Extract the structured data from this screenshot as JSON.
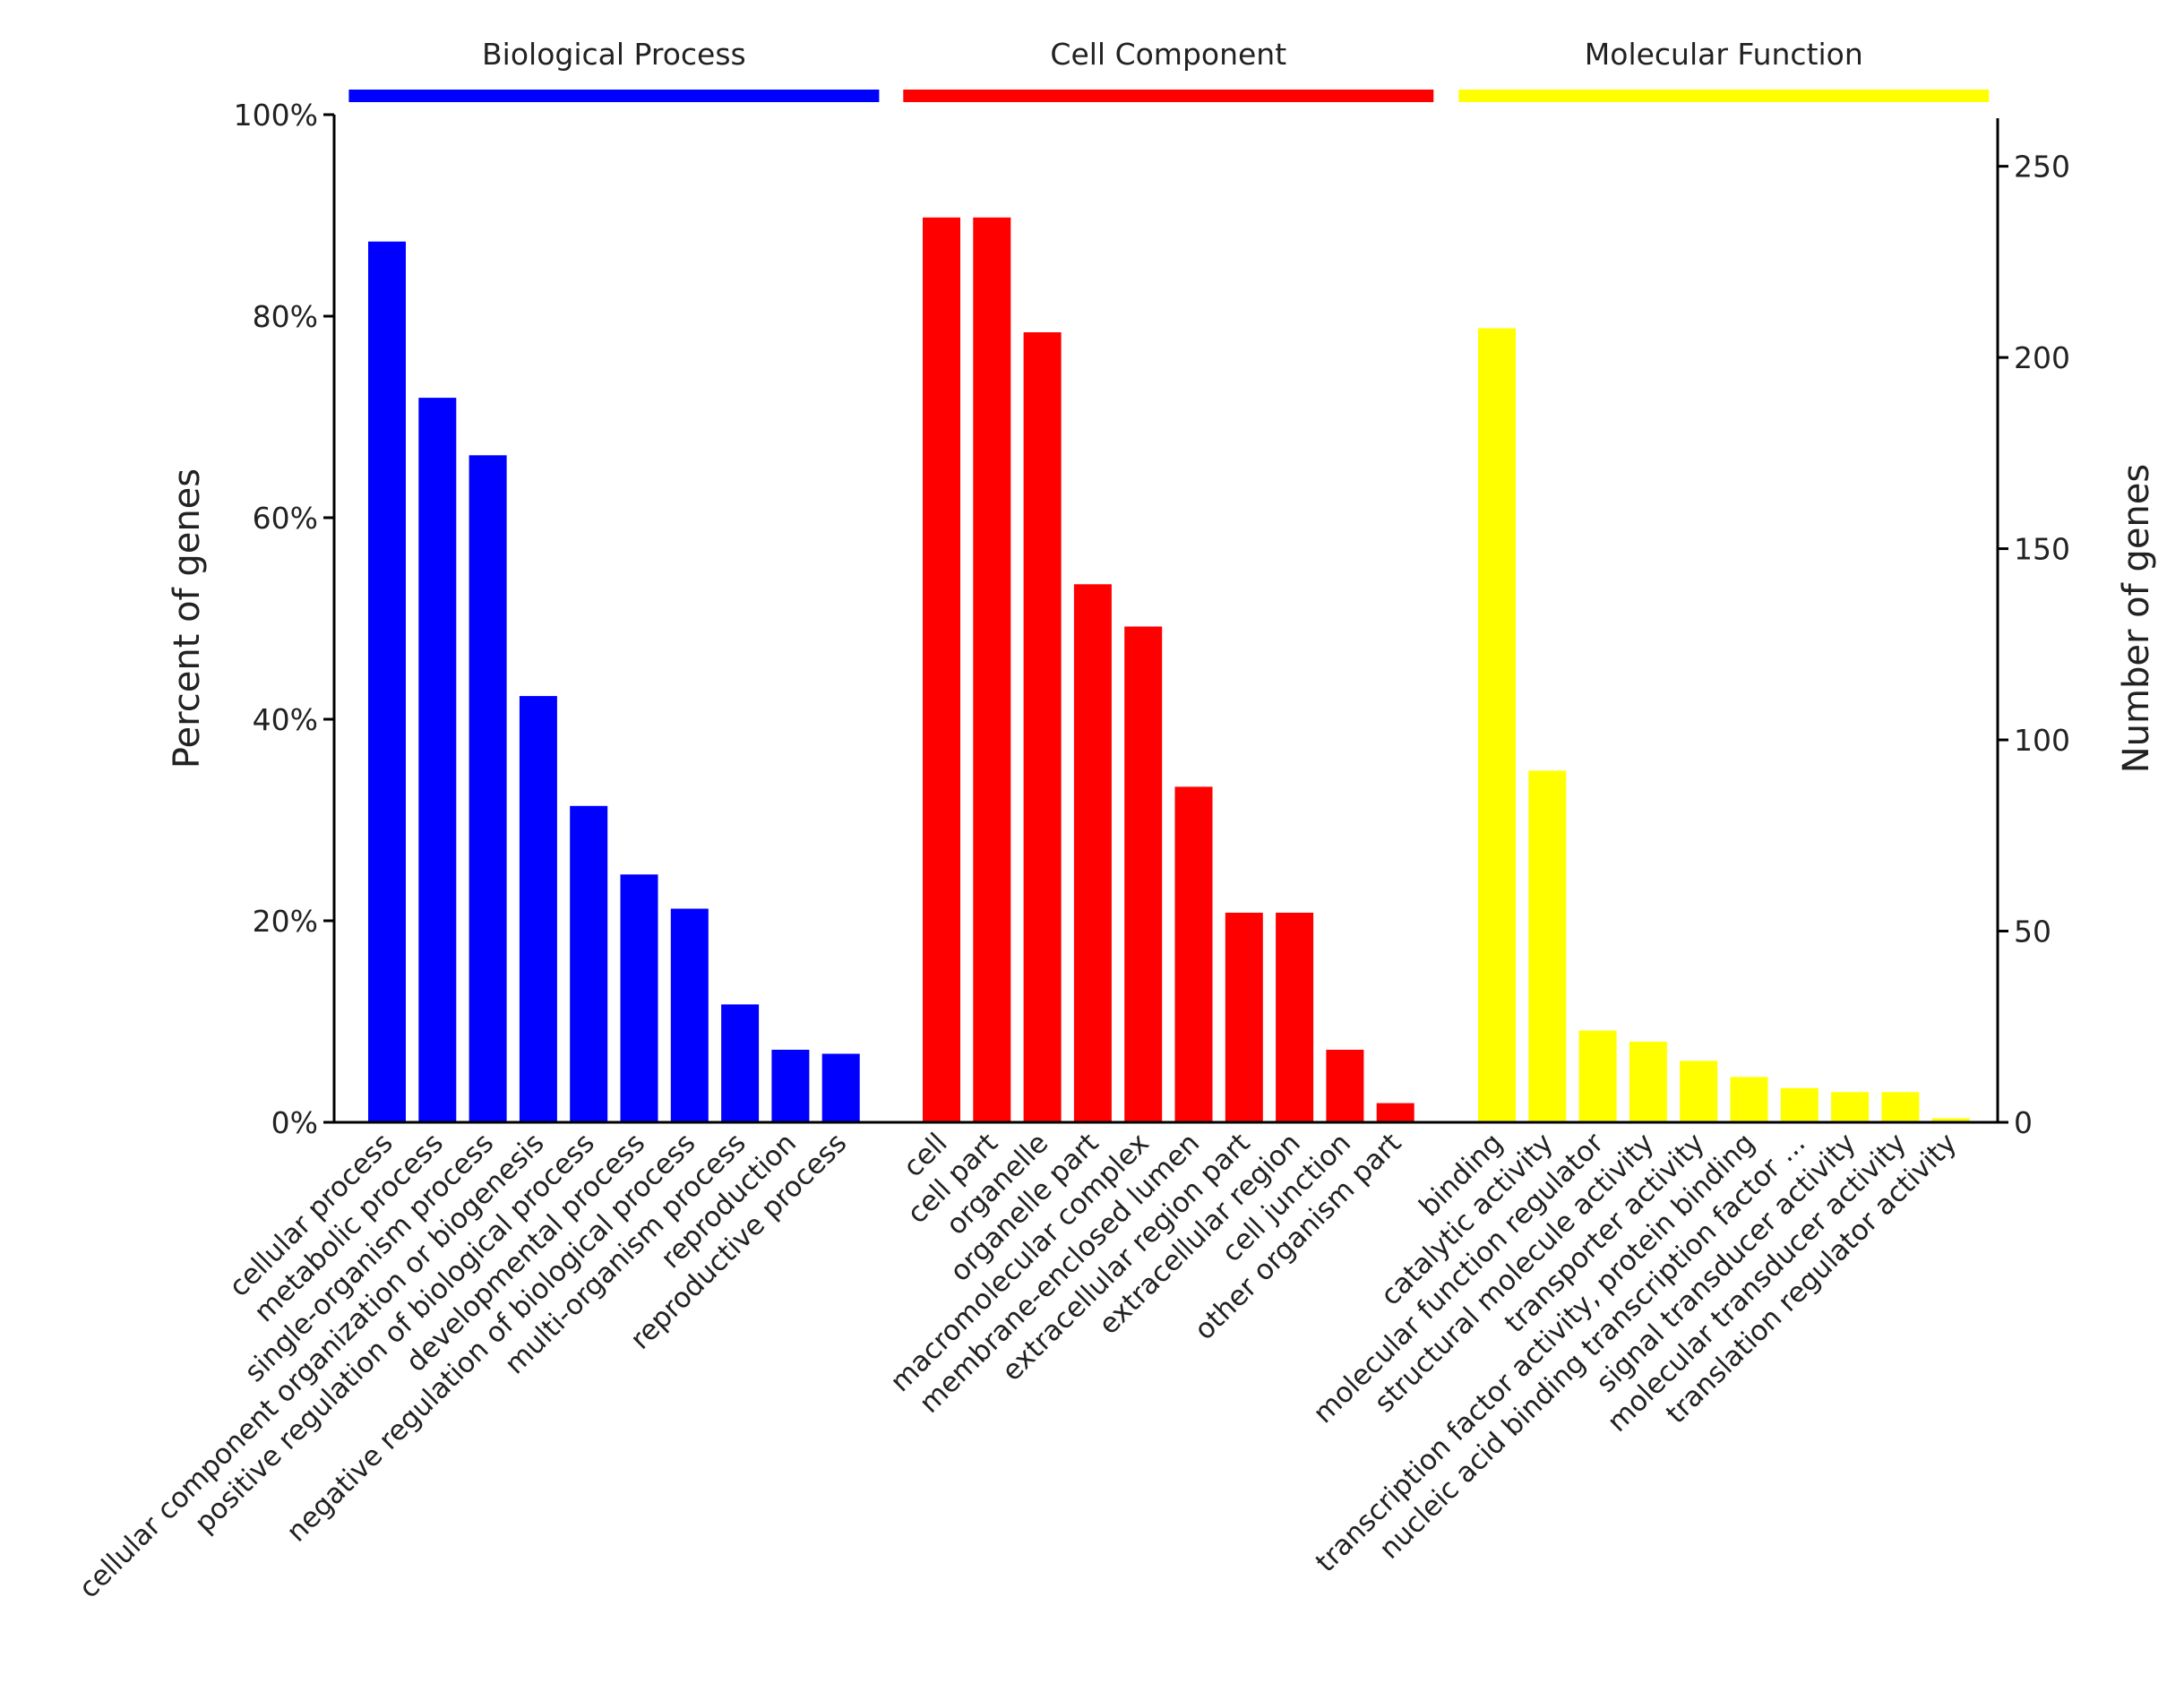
{
  "chart_data": {
    "type": "bar",
    "title": "",
    "ylabel_left": "Percent of genes",
    "ylabel_right": "Number of genes",
    "left_axis": {
      "ylim": [
        0,
        100
      ],
      "ticks": [
        0,
        20,
        40,
        60,
        80,
        100
      ],
      "tick_labels": [
        "0%",
        "20%",
        "40%",
        "60%",
        "80%",
        "100%"
      ]
    },
    "right_axis": {
      "ylim": [
        0,
        263.5
      ],
      "ticks": [
        0,
        50,
        100,
        150,
        200,
        250
      ],
      "tick_labels": [
        "0",
        "50",
        "100",
        "150",
        "200",
        "250"
      ]
    },
    "grid": false,
    "groups": [
      {
        "name": "Biological Process",
        "color": "#0000ff",
        "categories": [
          "cellular process",
          "metabolic process",
          "single-organism process",
          "cellular component organization or biogenesis",
          "positive regulation of biological process",
          "developmental process",
          "negative regulation of biological process",
          "multi-organism process",
          "reproduction",
          "reproductive process"
        ],
        "values": [
          87.4,
          71.9,
          66.2,
          42.3,
          31.4,
          24.6,
          21.2,
          11.7,
          7.2,
          6.8
        ]
      },
      {
        "name": "Cell Component",
        "color": "#ff0000",
        "categories": [
          "cell",
          "cell part",
          "organelle",
          "organelle part",
          "macromolecular complex",
          "membrane-enclosed lumen",
          "extracellular region part",
          "extracellular region",
          "cell junction",
          "other organism part"
        ],
        "values": [
          89.8,
          89.8,
          78.4,
          53.4,
          49.2,
          33.3,
          20.8,
          20.8,
          7.2,
          1.9
        ]
      },
      {
        "name": "Molecular Function",
        "color": "#ffff00",
        "categories": [
          "binding",
          "catalytic activity",
          "molecular function regulator",
          "structural molecule activity",
          "transporter activity",
          "transcription factor activity, protein binding",
          "nucleic acid binding transcription factor ...",
          "signal transducer activity",
          "molecular transducer activity",
          "translation regulator activity"
        ],
        "values": [
          78.8,
          34.9,
          9.1,
          8.0,
          6.1,
          4.5,
          3.4,
          3.0,
          3.0,
          0.4
        ]
      }
    ]
  }
}
